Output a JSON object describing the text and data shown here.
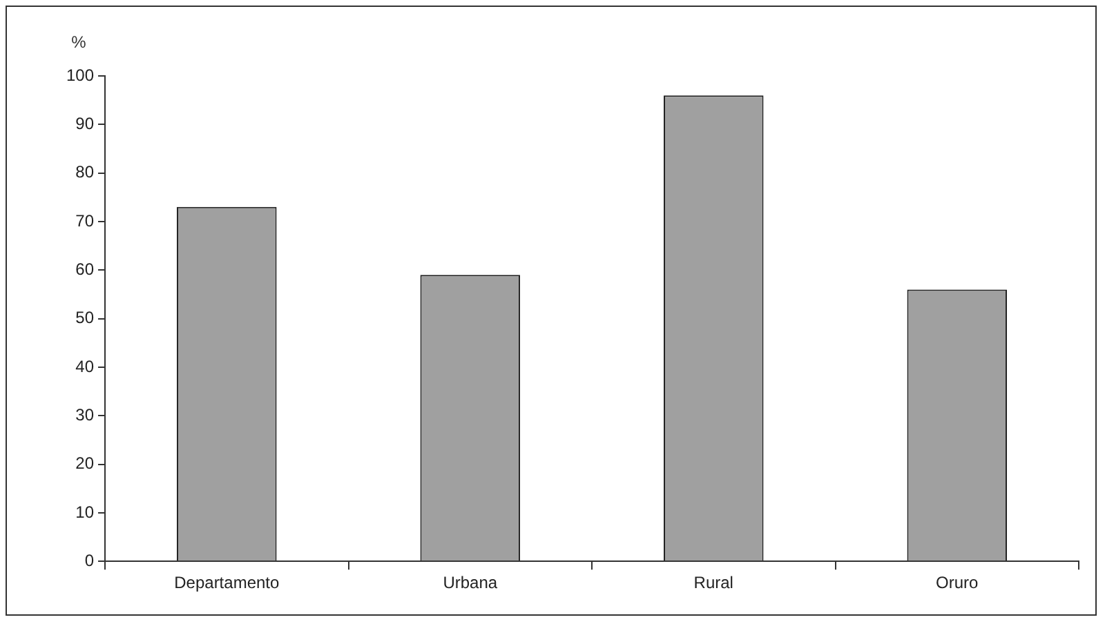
{
  "chart_data": {
    "type": "bar",
    "ylabel": "%",
    "categories": [
      "Departamento",
      "Urbana",
      "Rural",
      "Oruro"
    ],
    "values": [
      73,
      59,
      96,
      56
    ],
    "color": "#a0a0a0",
    "ylim": [
      0,
      100
    ],
    "yticks": [
      0,
      10,
      20,
      30,
      40,
      50,
      60,
      70,
      80,
      90,
      100
    ],
    "grid": false,
    "legend": false
  }
}
